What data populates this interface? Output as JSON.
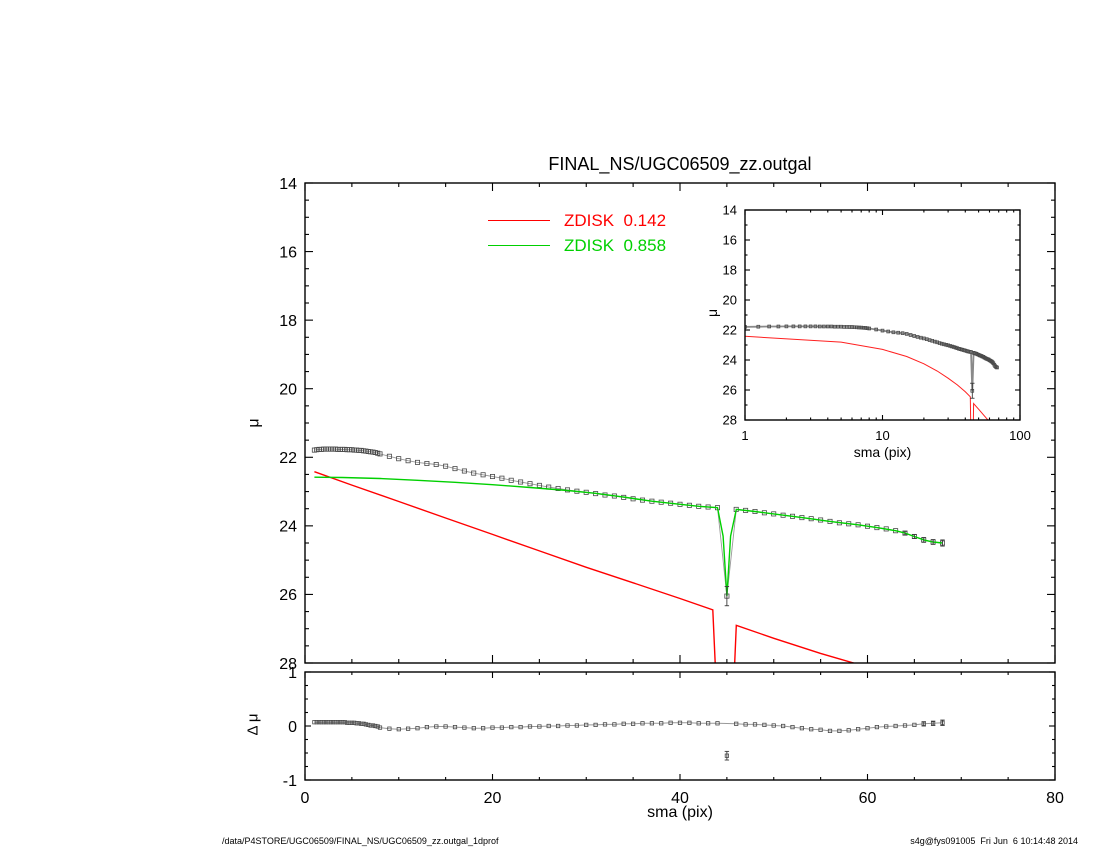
{
  "footer": {
    "left": "/data/P4STORE/UGC06509/FINAL_NS/UGC06509_zz.outgal_1dprof",
    "right": "s4g@fys091005  Fri Jun  6 10:14:48 2014"
  },
  "legend": {
    "items": [
      {
        "label": "ZDISK  0.142",
        "color": "#ff0000"
      },
      {
        "label": "ZDISK  0.858",
        "color": "#00d000"
      }
    ]
  },
  "chart_data": [
    {
      "id": "main",
      "type": "scatter",
      "title": "FINAL_NS/UGC06509_zz.outgal",
      "xlabel": "",
      "ylabel": "μ",
      "xleft": 0,
      "xright": 80,
      "ytop": 14,
      "ybottom": 28,
      "xticks": [
        0,
        20,
        40,
        60,
        80
      ],
      "yticks": [
        14,
        16,
        18,
        20,
        22,
        24,
        26,
        28
      ],
      "xminor": 5,
      "yminor": 0.5,
      "tick_len": 8,
      "tick_font": 16,
      "show_ytick_labels": true,
      "show_xtick_labels": false,
      "series": [
        {
          "name": "profile",
          "color": "#4a4a4a",
          "line": 0.9,
          "line_color": "#999999",
          "marker": "square",
          "msize": 2.1,
          "x": [
            1,
            1.25,
            1.5,
            1.75,
            2,
            2.25,
            2.5,
            2.75,
            3,
            3.25,
            3.5,
            3.75,
            4,
            4.25,
            4.5,
            4.75,
            5,
            5.25,
            5.5,
            5.75,
            6,
            6.25,
            6.5,
            6.75,
            7,
            7.25,
            7.5,
            7.75,
            8,
            9,
            10,
            11,
            12,
            13,
            14,
            15,
            16,
            17,
            18,
            19,
            20,
            21,
            22,
            23,
            24,
            25,
            26,
            27,
            28,
            29,
            30,
            31,
            32,
            33,
            34,
            35,
            36,
            37,
            38,
            39,
            40,
            41,
            42,
            43,
            44,
            45,
            46,
            47,
            48,
            49,
            50,
            51,
            52,
            53,
            54,
            55,
            56,
            57,
            58,
            59,
            60,
            61,
            62,
            63,
            64,
            65,
            66,
            67,
            68
          ],
          "y": [
            21.79,
            21.78,
            21.77,
            21.77,
            21.76,
            21.76,
            21.76,
            21.76,
            21.76,
            21.76,
            21.77,
            21.77,
            21.77,
            21.77,
            21.78,
            21.78,
            21.78,
            21.79,
            21.79,
            21.8,
            21.8,
            21.81,
            21.82,
            21.83,
            21.84,
            21.85,
            21.86,
            21.88,
            21.9,
            21.97,
            22.04,
            22.1,
            22.15,
            22.18,
            22.21,
            22.26,
            22.33,
            22.4,
            22.46,
            22.51,
            22.56,
            22.61,
            22.67,
            22.72,
            22.77,
            22.82,
            22.87,
            22.91,
            22.95,
            22.99,
            23.02,
            23.06,
            23.1,
            23.13,
            23.17,
            23.21,
            23.25,
            23.28,
            23.31,
            23.34,
            23.37,
            23.4,
            23.43,
            23.45,
            23.47,
            26.05,
            23.52,
            23.55,
            23.58,
            23.62,
            23.65,
            23.69,
            23.72,
            23.76,
            23.79,
            23.83,
            23.87,
            23.91,
            23.94,
            23.97,
            24.01,
            24.05,
            24.09,
            24.14,
            24.21,
            24.31,
            24.41,
            24.47,
            24.5
          ]
        },
        {
          "name": "zdisk-0.142",
          "color": "#ff0000",
          "line": 1.4,
          "x": [
            1,
            5,
            10,
            15,
            20,
            25,
            30,
            35,
            40,
            43.5,
            44,
            45.6,
            46,
            50,
            55,
            60,
            62
          ],
          "y": [
            22.42,
            22.81,
            23.29,
            23.77,
            24.25,
            24.73,
            25.21,
            25.66,
            26.12,
            26.45,
            29.5,
            29.5,
            26.9,
            27.28,
            27.72,
            28.12,
            28.3
          ]
        },
        {
          "name": "zdisk-0.858",
          "color": "#00d000",
          "line": 1.4,
          "x": [
            1,
            4,
            8,
            12,
            16,
            20,
            24,
            28,
            31,
            34,
            37,
            40,
            42,
            44,
            44.6,
            45,
            45.4,
            46,
            48,
            50,
            53,
            56,
            59,
            61,
            63,
            64,
            65,
            66,
            67,
            68
          ],
          "y": [
            22.58,
            22.59,
            22.62,
            22.67,
            22.73,
            22.8,
            22.88,
            22.97,
            23.05,
            23.16,
            23.28,
            23.37,
            23.43,
            23.47,
            24.3,
            26.05,
            24.3,
            23.52,
            23.58,
            23.65,
            23.76,
            23.87,
            23.97,
            24.05,
            24.14,
            24.21,
            24.31,
            24.41,
            24.47,
            24.5
          ]
        }
      ],
      "error_bars": [
        {
          "x": 45,
          "y": 26.05,
          "e": 0.28
        },
        {
          "x": 64,
          "y": 24.21,
          "e": 0.05
        },
        {
          "x": 65,
          "y": 24.31,
          "e": 0.06
        },
        {
          "x": 66,
          "y": 24.41,
          "e": 0.07
        },
        {
          "x": 67,
          "y": 24.47,
          "e": 0.07
        },
        {
          "x": 68,
          "y": 24.5,
          "e": 0.09
        }
      ]
    },
    {
      "id": "inset",
      "type": "scatter",
      "xlabel": "sma (pix)",
      "ylabel": "μ",
      "xscale": "log",
      "xleft": 1,
      "xright": 100,
      "ytop": 14,
      "ybottom": 28,
      "xticks": [
        1,
        10,
        100
      ],
      "yticks": [
        14,
        16,
        18,
        20,
        22,
        24,
        26,
        28
      ],
      "yminor": 1,
      "tick_len": 5,
      "tick_font": 13,
      "show_ytick_labels": true,
      "show_xtick_labels": true,
      "series": [
        {
          "name": "profile",
          "ref": [
            0,
            0
          ],
          "color": "#4a4a4a",
          "line": 1.8,
          "line_color": "#8a8a8a",
          "marker": "square",
          "msize": 1.4
        },
        {
          "name": "zdisk-0.142",
          "ref": [
            0,
            1
          ],
          "color": "#ff2020",
          "line": 1
        }
      ],
      "error_bars": [
        {
          "x": 45,
          "y": 26.05,
          "e": 0.5
        }
      ]
    },
    {
      "id": "residuals",
      "type": "scatter",
      "xlabel": "sma (pix)",
      "ylabel": "Δ μ",
      "xleft": 0,
      "xright": 80,
      "ytop": 1,
      "ybottom": -1,
      "xticks": [
        0,
        20,
        40,
        60,
        80
      ],
      "yticks": [
        1,
        0,
        -1
      ],
      "xminor": 5,
      "yminor": 0.25,
      "tick_len": 6,
      "tick_font": 16,
      "show_ytick_labels": true,
      "show_xtick_labels": true,
      "series": [
        {
          "name": "residual",
          "xref": [
            0,
            0
          ],
          "color": "#4a4a4a",
          "line": 1,
          "line_color": "#999999",
          "skip_abs_above": 0.3,
          "marker": "square",
          "msize": 1.7,
          "y": [
            0.07,
            0.07,
            0.07,
            0.07,
            0.07,
            0.07,
            0.07,
            0.07,
            0.07,
            0.07,
            0.07,
            0.07,
            0.07,
            0.07,
            0.06,
            0.06,
            0.06,
            0.06,
            0.05,
            0.05,
            0.04,
            0.04,
            0.03,
            0.02,
            0.01,
            0.01,
            0,
            -0.01,
            -0.03,
            -0.05,
            -0.06,
            -0.05,
            -0.04,
            -0.02,
            -0.01,
            -0.01,
            -0.02,
            -0.03,
            -0.04,
            -0.04,
            -0.03,
            -0.03,
            -0.02,
            -0.02,
            -0.01,
            -0.01,
            0,
            0,
            0.01,
            0.01,
            0.02,
            0.02,
            0.03,
            0.03,
            0.04,
            0.04,
            0.05,
            0.05,
            0.05,
            0.06,
            0.06,
            0.06,
            0.05,
            0.05,
            0.05,
            -0.55,
            0.04,
            0.03,
            0.03,
            0.02,
            0.01,
            0,
            -0.02,
            -0.04,
            -0.06,
            -0.07,
            -0.09,
            -0.09,
            -0.08,
            -0.06,
            -0.04,
            -0.02,
            -0.01,
            0,
            0.01,
            0.02,
            0.04,
            0.05,
            0.06
          ]
        }
      ],
      "error_bars": [
        {
          "x": 45,
          "y": -0.55,
          "e": 0.08
        },
        {
          "x": 66,
          "y": 0.04,
          "e": 0.04
        },
        {
          "x": 67,
          "y": 0.05,
          "e": 0.04
        },
        {
          "x": 68,
          "y": 0.06,
          "e": 0.05
        }
      ]
    }
  ]
}
